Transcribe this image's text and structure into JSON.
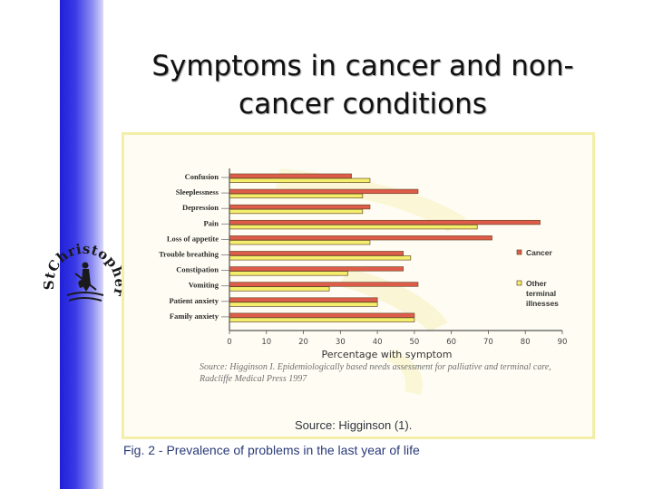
{
  "slide": {
    "title_line1": "Symptoms in cancer and non-",
    "title_line2": "cancer conditions",
    "logo_text": "StChristophers"
  },
  "figure": {
    "citation_line1": "Source: Higginson I. Epidemiologically  based needs assessment for palliative and terminal care,",
    "citation_line2": "Radcliffe Medical Press 1997",
    "source": "Source: Higginson (1).",
    "caption": "Fig. 2 - Prevalence of problems in the last year of life"
  },
  "chart_data": {
    "type": "bar",
    "orientation": "horizontal",
    "xlabel": "Percentage with symptom",
    "xlim": [
      0,
      90
    ],
    "xticks": [
      0,
      10,
      20,
      30,
      40,
      50,
      60,
      70,
      80,
      90
    ],
    "categories": [
      "Confusion",
      "Sleeplessness",
      "Depression",
      "Pain",
      "Loss of appetite",
      "Trouble breathing",
      "Constipation",
      "Vomiting",
      "Patient anxiety",
      "Family anxiety"
    ],
    "series": [
      {
        "name": "Cancer",
        "color": "#e05c4a",
        "values": [
          33,
          51,
          38,
          84,
          71,
          47,
          47,
          51,
          40,
          50
        ]
      },
      {
        "name": "Other terminal illnesses",
        "color": "#f3ef6c",
        "values": [
          38,
          36,
          36,
          67,
          38,
          49,
          32,
          27,
          40,
          50
        ]
      }
    ],
    "legend_position": "right",
    "legend_labels": [
      "Cancer",
      "Other",
      "terminal",
      "illnesses"
    ]
  }
}
